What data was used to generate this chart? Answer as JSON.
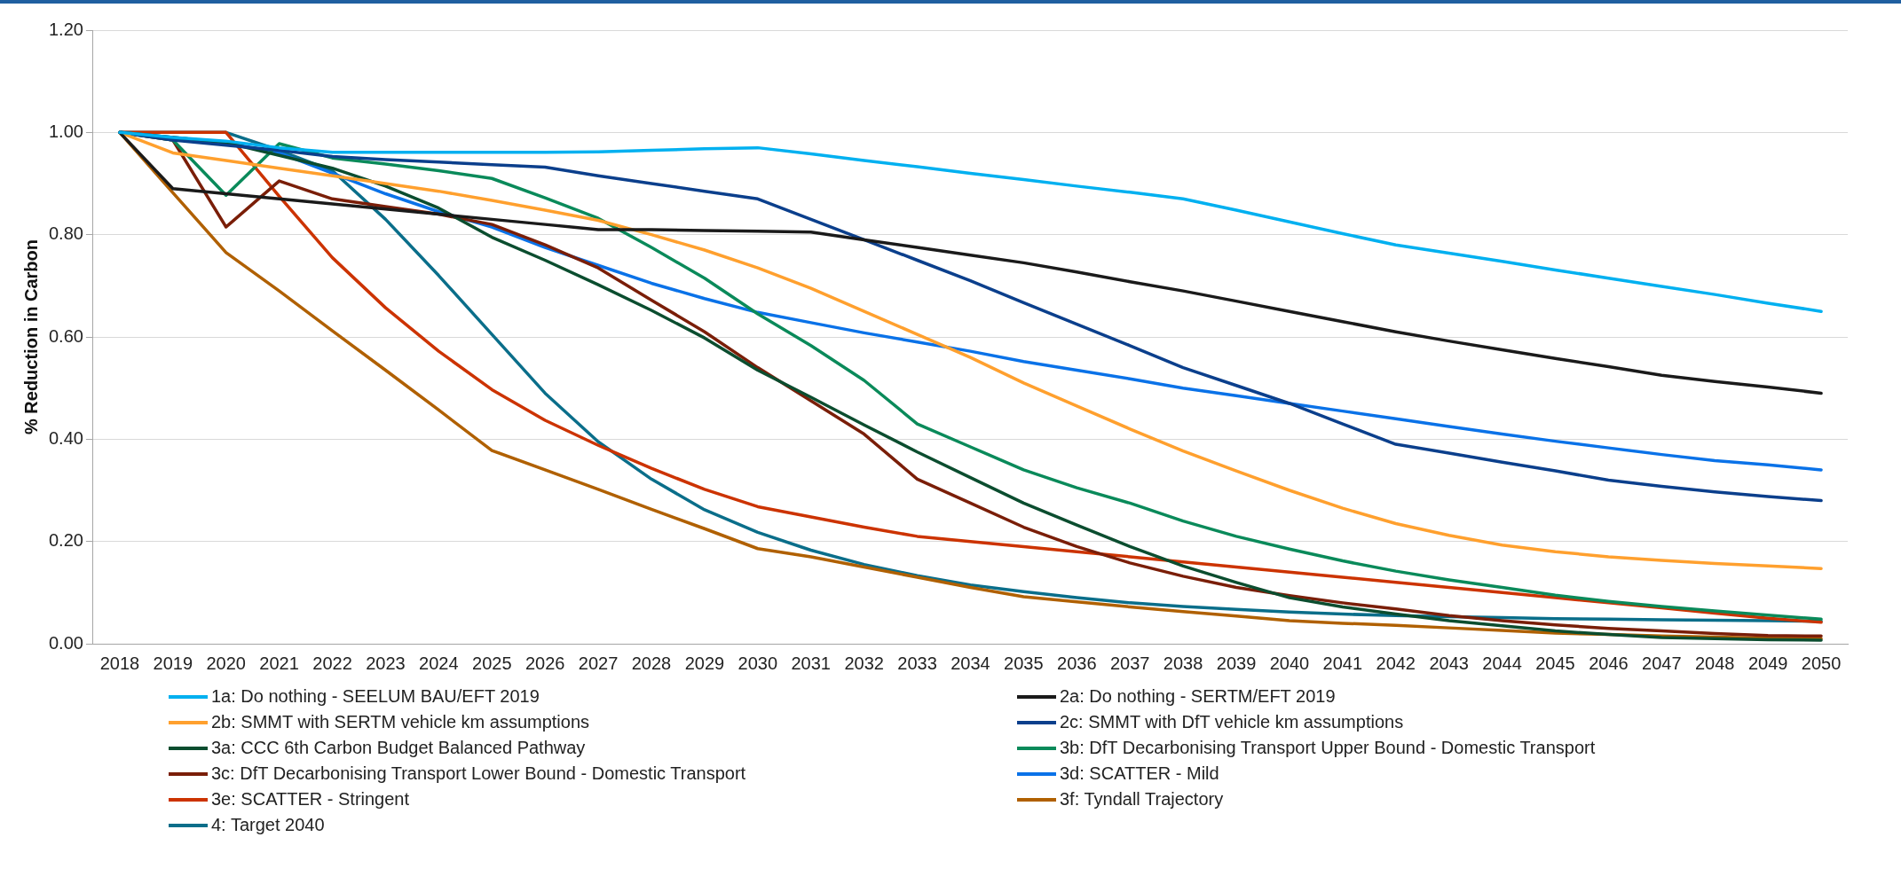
{
  "chart_data": {
    "type": "line",
    "ylabel": "% Reduction in Carbon",
    "categories": [
      "2018",
      "2019",
      "2020",
      "2021",
      "2022",
      "2023",
      "2024",
      "2025",
      "2026",
      "2027",
      "2028",
      "2029",
      "2030",
      "2031",
      "2032",
      "2033",
      "2034",
      "2035",
      "2036",
      "2037",
      "2038",
      "2039",
      "2040",
      "2041",
      "2042",
      "2043",
      "2044",
      "2045",
      "2046",
      "2047",
      "2048",
      "2049",
      "2050"
    ],
    "ylim": [
      0,
      1.2
    ],
    "yticks": [
      {
        "value": 0,
        "label": "0.00"
      },
      {
        "value": 0.2,
        "label": "0.20"
      },
      {
        "value": 0.4,
        "label": "0.40"
      },
      {
        "value": 0.6,
        "label": "0.60"
      },
      {
        "value": 0.8,
        "label": "0.80"
      },
      {
        "value": 1,
        "label": "1.00"
      },
      {
        "value": 1.2,
        "label": "1.20"
      }
    ],
    "grid": "y",
    "legend": "bottom",
    "marker": "none",
    "line_style": "solid",
    "series": [
      {
        "name": "1a: Do nothing - SEELUM BAU/EFT 2019",
        "color": "#00b0f0",
        "values": [
          1,
          0.99,
          0.983,
          0.97,
          0.961,
          0.961,
          0.961,
          0.961,
          0.961,
          0.962,
          0.965,
          0.968,
          0.97,
          0.958,
          0.945,
          0.933,
          0.92,
          0.908,
          0.895,
          0.883,
          0.87,
          0.848,
          0.825,
          0.802,
          0.78,
          0.764,
          0.748,
          0.731,
          0.715,
          0.699,
          0.683,
          0.666,
          0.65
        ]
      },
      {
        "name": "2a: Do nothing - SERTM/EFT 2019",
        "color": "#1a1a1a",
        "values": [
          1,
          0.89,
          0.88,
          0.87,
          0.86,
          0.85,
          0.84,
          0.83,
          0.82,
          0.81,
          0.81,
          0.808,
          0.807,
          0.805,
          0.79,
          0.775,
          0.76,
          0.745,
          0.727,
          0.708,
          0.69,
          0.67,
          0.65,
          0.63,
          0.61,
          0.592,
          0.575,
          0.558,
          0.542,
          0.525,
          0.513,
          0.502,
          0.49
        ]
      },
      {
        "name": "2b: SMMT with SERTM vehicle km assumptions",
        "color": "#ffa02e",
        "values": [
          1,
          0.96,
          0.945,
          0.93,
          0.915,
          0.9,
          0.885,
          0.867,
          0.848,
          0.828,
          0.8,
          0.77,
          0.735,
          0.695,
          0.65,
          0.605,
          0.56,
          0.51,
          0.465,
          0.42,
          0.377,
          0.338,
          0.3,
          0.265,
          0.235,
          0.212,
          0.193,
          0.18,
          0.17,
          0.163,
          0.157,
          0.152,
          0.147
        ]
      },
      {
        "name": "2c: SMMT with DfT vehicle km assumptions",
        "color": "#0b3f8c",
        "values": [
          1,
          0.985,
          0.975,
          0.965,
          0.953,
          0.947,
          0.942,
          0.937,
          0.932,
          0.915,
          0.9,
          0.885,
          0.87,
          0.83,
          0.79,
          0.75,
          0.71,
          0.667,
          0.625,
          0.583,
          0.54,
          0.505,
          0.47,
          0.43,
          0.39,
          0.373,
          0.355,
          0.338,
          0.32,
          0.308,
          0.297,
          0.288,
          0.28
        ]
      },
      {
        "name": "3a: CCC 6th Carbon Budget Balanced Pathway",
        "color": "#0b4d2f",
        "values": [
          1,
          0.99,
          0.98,
          0.955,
          0.93,
          0.895,
          0.852,
          0.795,
          0.75,
          0.702,
          0.652,
          0.598,
          0.535,
          0.482,
          0.428,
          0.375,
          0.325,
          0.275,
          0.232,
          0.19,
          0.152,
          0.12,
          0.09,
          0.072,
          0.058,
          0.045,
          0.035,
          0.025,
          0.018,
          0.012,
          0.01,
          0.008,
          0.007
        ]
      },
      {
        "name": "3b: DfT Decarbonising Transport Upper Bound - Domestic Transport",
        "color": "#0a8a5a",
        "values": [
          1,
          0.985,
          0.877,
          0.978,
          0.95,
          0.938,
          0.925,
          0.91,
          0.872,
          0.832,
          0.775,
          0.715,
          0.645,
          0.583,
          0.515,
          0.43,
          0.385,
          0.34,
          0.305,
          0.275,
          0.24,
          0.21,
          0.185,
          0.162,
          0.142,
          0.125,
          0.11,
          0.095,
          0.083,
          0.073,
          0.064,
          0.056,
          0.048
        ]
      },
      {
        "name": "3c: DfT Decarbonising Transport Lower Bound - Domestic Transport",
        "color": "#7a1e08",
        "values": [
          1,
          0.985,
          0.815,
          0.905,
          0.87,
          0.855,
          0.84,
          0.82,
          0.78,
          0.735,
          0.672,
          0.61,
          0.54,
          0.475,
          0.41,
          0.322,
          0.275,
          0.228,
          0.19,
          0.158,
          0.132,
          0.11,
          0.094,
          0.08,
          0.068,
          0.055,
          0.045,
          0.037,
          0.03,
          0.025,
          0.02,
          0.016,
          0.015
        ]
      },
      {
        "name": "3d: SCATTER - Mild",
        "color": "#0a72e8",
        "values": [
          1,
          0.99,
          0.98,
          0.96,
          0.92,
          0.88,
          0.845,
          0.815,
          0.775,
          0.74,
          0.705,
          0.675,
          0.648,
          0.628,
          0.608,
          0.59,
          0.572,
          0.552,
          0.535,
          0.518,
          0.5,
          0.485,
          0.47,
          0.455,
          0.44,
          0.425,
          0.41,
          0.396,
          0.383,
          0.37,
          0.358,
          0.35,
          0.34
        ]
      },
      {
        "name": "3e: SCATTER - Stringent",
        "color": "#cc3300",
        "values": [
          1,
          1,
          1,
          0.875,
          0.755,
          0.657,
          0.572,
          0.497,
          0.437,
          0.388,
          0.343,
          0.302,
          0.268,
          0.248,
          0.228,
          0.21,
          0.2,
          0.19,
          0.18,
          0.17,
          0.16,
          0.15,
          0.14,
          0.13,
          0.12,
          0.11,
          0.1,
          0.09,
          0.08,
          0.07,
          0.06,
          0.05,
          0.042
        ]
      },
      {
        "name": "3f: Tyndall Trajectory",
        "color": "#b06000",
        "values": [
          1,
          0.882,
          0.765,
          0.69,
          0.612,
          0.535,
          0.457,
          0.378,
          0.34,
          0.302,
          0.263,
          0.225,
          0.186,
          0.17,
          0.15,
          0.13,
          0.11,
          0.092,
          0.082,
          0.072,
          0.063,
          0.054,
          0.045,
          0.04,
          0.036,
          0.031,
          0.026,
          0.021,
          0.018,
          0.015,
          0.013,
          0.011,
          0.01
        ]
      },
      {
        "name": "4: Target 2040",
        "color": "#0a6e8a",
        "values": [
          1,
          1,
          1,
          0.965,
          0.925,
          0.83,
          0.72,
          0.605,
          0.49,
          0.395,
          0.322,
          0.262,
          0.218,
          0.183,
          0.155,
          0.133,
          0.115,
          0.102,
          0.09,
          0.08,
          0.073,
          0.067,
          0.062,
          0.058,
          0.055,
          0.053,
          0.051,
          0.049,
          0.048,
          0.047,
          0.046,
          0.045,
          0.044
        ]
      }
    ]
  }
}
